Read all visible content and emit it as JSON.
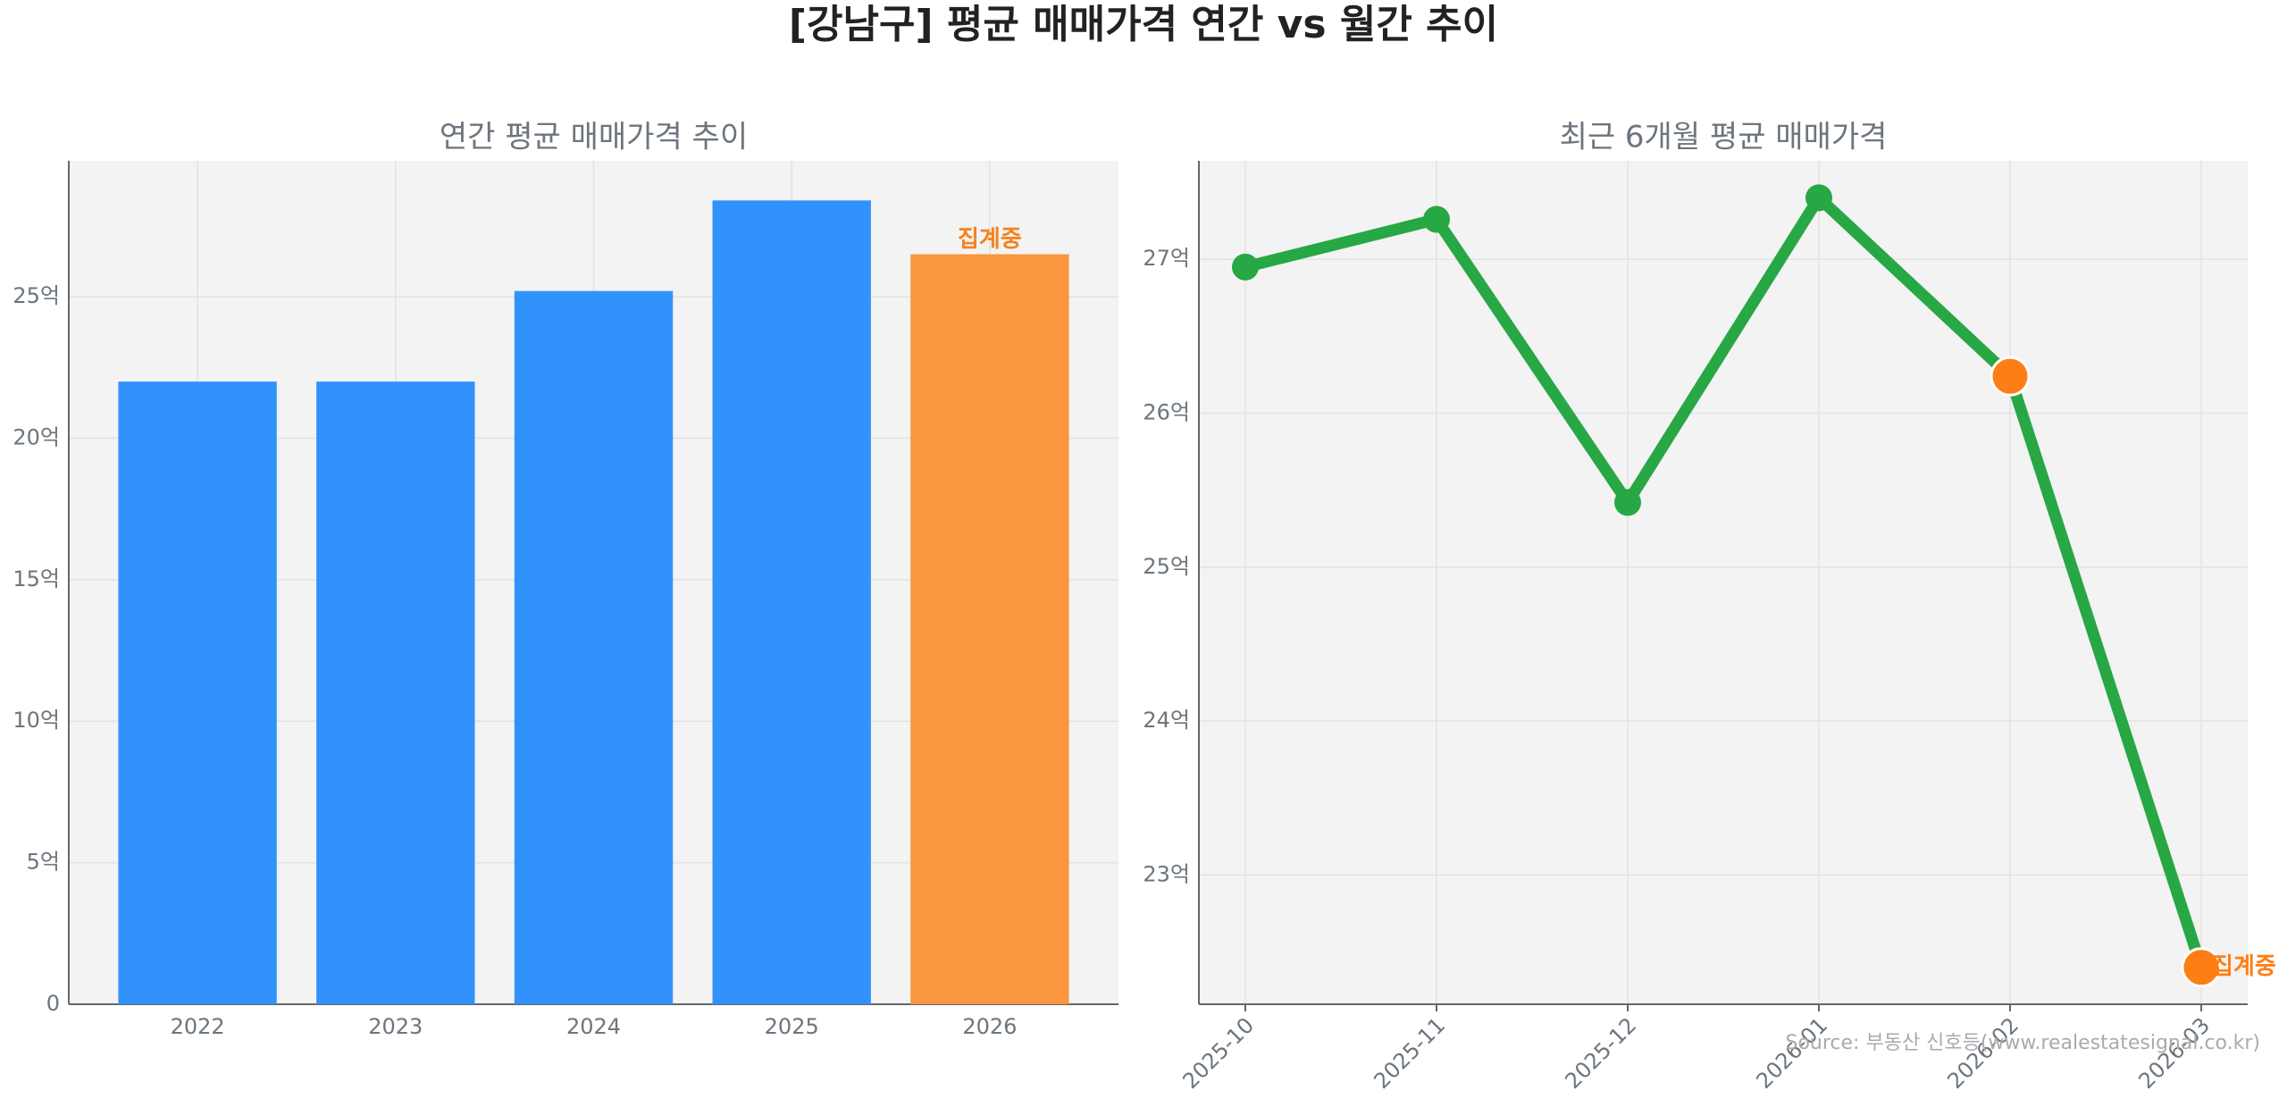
{
  "title": "[강남구] 평균 매매가격 연간 vs 월간 추이",
  "source": "Source: 부동산 신호등(www.realestatesignal.co.kr)",
  "chart_data": [
    {
      "type": "bar",
      "title": "연간 평균 매매가격 추이",
      "categories": [
        "2022",
        "2023",
        "2024",
        "2025",
        "2026"
      ],
      "values": [
        22.0,
        22.0,
        25.2,
        28.4,
        26.5
      ],
      "colors": [
        "#3192fb",
        "#3192fb",
        "#3192fb",
        "#3192fb",
        "#f9963f"
      ],
      "annotation": "집계중",
      "annotation_color": "#f5821f",
      "ylim": [
        0,
        29.8
      ],
      "yticks": [
        0,
        {
          "value": 5,
          "label": "5억"
        },
        {
          "value": 10,
          "label": "10억"
        },
        {
          "value": 15,
          "label": "15억"
        },
        {
          "value": 20,
          "label": "20억"
        },
        {
          "value": 25,
          "label": "25억"
        }
      ],
      "grid": true
    },
    {
      "type": "line",
      "title": "최근 6개월 평균 매매가격",
      "categories": [
        "2025-10",
        "2025-11",
        "2025-12",
        "2026-01",
        "2026-02",
        "2026-03"
      ],
      "values": [
        26.95,
        27.26,
        25.42,
        27.4,
        26.24,
        22.4
      ],
      "color": "#28a745",
      "marker_colors": [
        "#28a745",
        "#28a745",
        "#28a745",
        "#28a745",
        "#fd7e14",
        "#fd7e14"
      ],
      "annotation": "집계중",
      "annotation_color": "#fd7e14",
      "ylim": [
        22.16,
        27.64
      ],
      "yticks": [
        {
          "value": 23,
          "label": "23억"
        },
        {
          "value": 24,
          "label": "24억"
        },
        {
          "value": 25,
          "label": "25억"
        },
        {
          "value": 26,
          "label": "26억"
        },
        {
          "value": 27,
          "label": "27억"
        }
      ],
      "grid": true
    }
  ]
}
